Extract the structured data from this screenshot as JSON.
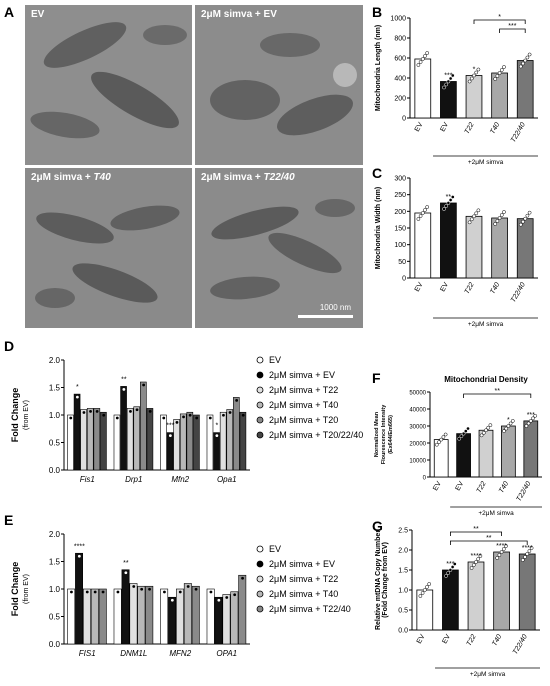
{
  "panels": {
    "A": "A",
    "B": "B",
    "C": "C",
    "D": "D",
    "E": "E",
    "F": "F",
    "G": "G"
  },
  "panel_a": {
    "images": [
      {
        "label": "EV",
        "label_italic": ""
      },
      {
        "label": "2μM simva + EV",
        "label_italic": ""
      },
      {
        "label": "2μM simva + ",
        "label_italic": "T40"
      },
      {
        "label": "2μM simva + ",
        "label_italic": "T22/40"
      }
    ],
    "scale_bar": "1000 nm"
  },
  "colors": {
    "white": "#ffffff",
    "black": "#111111",
    "light_gray": "#d0d0d0",
    "mid_gray": "#a8a8a8",
    "dark_gray": "#777777",
    "em_gray": "#8a8a8a"
  },
  "chart_data": [
    {
      "id": "B",
      "type": "bar",
      "ylabel": "Mitochondria Length (nm)",
      "ylim": [
        0,
        1000
      ],
      "yticks": [
        0,
        200,
        400,
        600,
        800,
        1000
      ],
      "categories": [
        "EV",
        "EV",
        "T22",
        "T40",
        "T22/40"
      ],
      "values": [
        590,
        365,
        425,
        450,
        575
      ],
      "fills": [
        "#ffffff",
        "#111111",
        "#d0d0d0",
        "#a8a8a8",
        "#777777"
      ],
      "stars": [
        "",
        "***",
        "*",
        "",
        ""
      ],
      "brackets": [
        {
          "from": 2,
          "to": 4,
          "label": "*"
        },
        {
          "from": 3,
          "to": 4,
          "label": "***"
        }
      ],
      "group_label": "+2μM simva"
    },
    {
      "id": "C",
      "type": "bar",
      "ylabel": "Mitochondria Width (nm)",
      "ylim": [
        0,
        300
      ],
      "yticks": [
        0,
        50,
        100,
        150,
        200,
        250,
        300
      ],
      "categories": [
        "EV",
        "EV",
        "T22",
        "T40",
        "T22/40"
      ],
      "values": [
        195,
        225,
        185,
        180,
        178
      ],
      "fills": [
        "#ffffff",
        "#111111",
        "#d0d0d0",
        "#a8a8a8",
        "#777777"
      ],
      "stars": [
        "",
        "**",
        "",
        "",
        ""
      ],
      "group_label": "+2μM simva"
    },
    {
      "id": "D",
      "type": "bar",
      "ylabel": "Fold Change",
      "ylabel2": "(from EV)",
      "ylim": [
        0,
        2.0
      ],
      "yticks": [
        "0.0",
        "0.5",
        "1.0",
        "1.5",
        "2.0"
      ],
      "categories": [
        "Fis1",
        "Drp1",
        "Mfn2",
        "Opa1"
      ],
      "series": [
        {
          "name": "EV",
          "values": [
            1.0,
            1.0,
            1.0,
            1.0
          ]
        },
        {
          "name": "2μM simva + EV",
          "values": [
            1.38,
            1.52,
            0.68,
            0.68
          ]
        },
        {
          "name": "2μM simva + T22",
          "values": [
            1.1,
            1.12,
            0.92,
            1.05
          ]
        },
        {
          "name": "2μM simva + T40",
          "values": [
            1.12,
            1.15,
            1.02,
            1.1
          ]
        },
        {
          "name": "2μM simva + T20",
          "values": [
            1.12,
            1.6,
            1.05,
            1.32
          ]
        },
        {
          "name": "2μM simva + T20/22/40",
          "values": [
            1.05,
            1.12,
            1.0,
            1.05
          ]
        }
      ],
      "stars": [
        "*",
        "**",
        "***",
        "*"
      ]
    },
    {
      "id": "E",
      "type": "bar",
      "ylabel": "Fold Change",
      "ylabel2": "(from EV)",
      "ylim": [
        0,
        2.0
      ],
      "yticks": [
        "0.0",
        "0.5",
        "1.0",
        "1.5",
        "2.0"
      ],
      "categories": [
        "FIS1",
        "DNM1L",
        "MFN2",
        "OPA1"
      ],
      "series": [
        {
          "name": "EV",
          "values": [
            1.0,
            1.0,
            1.0,
            1.0
          ]
        },
        {
          "name": "2μM simva + EV",
          "values": [
            1.65,
            1.35,
            0.85,
            0.85
          ]
        },
        {
          "name": "2μM simva + T22",
          "values": [
            1.0,
            1.1,
            1.0,
            0.9
          ]
        },
        {
          "name": "2μM simva + T40",
          "values": [
            1.0,
            1.05,
            1.1,
            0.95
          ]
        },
        {
          "name": "2μM simva + T22/40",
          "values": [
            1.0,
            1.05,
            1.05,
            1.25
          ]
        }
      ],
      "stars": [
        "****",
        "**",
        "",
        ""
      ]
    },
    {
      "id": "F",
      "type": "bar",
      "title": "Mitochondrial Density",
      "ylabel": "Normalized Mean",
      "ylabel2": "Flourescence Intensity",
      "ylabel3": "(Ex644/Em665)",
      "ylim": [
        0,
        50000
      ],
      "yticks": [
        "0",
        "10000",
        "20000",
        "30000",
        "40000",
        "50000"
      ],
      "categories": [
        "EV",
        "EV",
        "T22",
        "T40",
        "T22/40"
      ],
      "values": [
        22000,
        25500,
        27500,
        30000,
        33000
      ],
      "fills": [
        "#ffffff",
        "#111111",
        "#d0d0d0",
        "#a8a8a8",
        "#777777"
      ],
      "stars": [
        "",
        "",
        "",
        "*",
        "***"
      ],
      "brackets": [
        {
          "from": 1,
          "to": 4,
          "label": "**"
        }
      ],
      "group_label": "+2μM simva"
    },
    {
      "id": "G",
      "type": "bar",
      "ylabel": "Relative mtDNA Copy Number",
      "ylabel2": "(Fold Change from EV)",
      "ylim": [
        0,
        2.5
      ],
      "yticks": [
        "0.0",
        "0.5",
        "1.0",
        "1.5",
        "2.0",
        "2.5"
      ],
      "categories": [
        "EV",
        "EV",
        "T22",
        "T40",
        "T22/40"
      ],
      "values": [
        1.0,
        1.5,
        1.7,
        1.95,
        1.9
      ],
      "fills": [
        "#ffffff",
        "#111111",
        "#d0d0d0",
        "#a8a8a8",
        "#777777"
      ],
      "stars": [
        "",
        "***",
        "****",
        "****",
        "****"
      ],
      "brackets": [
        {
          "from": 1,
          "to": 3,
          "label": "**"
        },
        {
          "from": 1,
          "to": 4,
          "label": "**"
        }
      ],
      "group_label": "+2μM simva"
    }
  ]
}
